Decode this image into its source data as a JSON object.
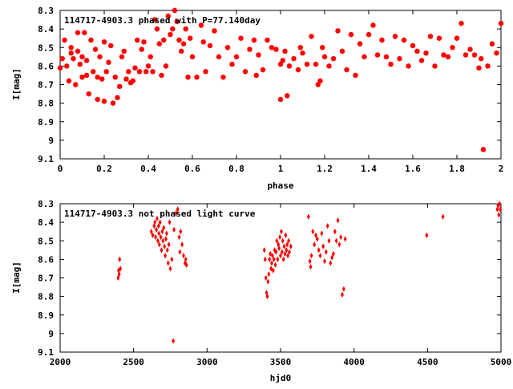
{
  "colors": {
    "points": "#ff0000",
    "axes": "#000000",
    "background": "#ffffff"
  },
  "chart_data": [
    {
      "type": "scatter",
      "title": "114717-4903.3 phased with P=77.140day",
      "xlabel": "phase",
      "ylabel": "I[mag]",
      "xlim": [
        0,
        2
      ],
      "ylim": [
        8.3,
        9.1
      ],
      "y_inverted": true,
      "xticks": [
        "0",
        "0.2",
        "0.4",
        "0.6",
        "0.8",
        "1",
        "1.2",
        "1.4",
        "1.6",
        "1.8",
        "2"
      ],
      "yticks": [
        "8.3",
        "8.4",
        "8.5",
        "8.6",
        "8.7",
        "8.8",
        "8.9",
        "9",
        "9.1"
      ],
      "marker": "star",
      "series": [
        {
          "x": [
            0.0,
            0.01,
            0.02,
            0.03,
            0.04,
            0.05,
            0.05,
            0.06,
            0.07,
            0.08,
            0.08,
            0.09,
            0.1,
            0.1,
            0.11,
            0.12,
            0.12,
            0.13,
            0.14,
            0.15,
            0.16,
            0.17,
            0.17,
            0.18,
            0.19,
            0.2,
            0.2,
            0.21,
            0.22,
            0.23,
            0.24,
            0.25,
            0.26,
            0.27,
            0.28,
            0.29,
            0.3,
            0.31,
            0.32,
            0.33,
            0.34,
            0.35,
            0.36,
            0.37,
            0.38,
            0.39,
            0.4,
            0.41,
            0.42,
            0.43,
            0.44,
            0.45,
            0.46,
            0.47,
            0.48,
            0.49,
            0.5,
            0.51,
            0.52,
            0.53,
            0.54,
            0.55,
            0.56,
            0.57,
            0.58,
            0.59,
            0.6,
            0.62,
            0.64,
            0.65,
            0.66,
            0.68,
            0.7,
            0.72,
            0.74,
            0.76,
            0.78,
            0.8,
            0.82,
            0.84,
            0.86,
            0.88,
            0.89,
            0.9,
            0.92,
            0.94,
            0.96,
            0.98,
            1.0,
            1.0,
            1.01,
            1.02,
            1.03,
            1.04,
            1.06,
            1.08,
            1.09,
            1.1,
            1.12,
            1.14,
            1.16,
            1.17,
            1.18,
            1.19,
            1.2,
            1.22,
            1.24,
            1.26,
            1.28,
            1.3,
            1.32,
            1.34,
            1.36,
            1.38,
            1.4,
            1.42,
            1.44,
            1.46,
            1.48,
            1.5,
            1.52,
            1.54,
            1.56,
            1.58,
            1.6,
            1.62,
            1.64,
            1.66,
            1.68,
            1.7,
            1.72,
            1.74,
            1.76,
            1.78,
            1.8,
            1.82,
            1.84,
            1.86,
            1.88,
            1.9,
            1.91,
            1.92,
            1.94,
            1.96,
            1.98,
            2.0
          ],
          "y": [
            8.61,
            8.56,
            8.46,
            8.6,
            8.68,
            8.5,
            8.53,
            8.56,
            8.7,
            8.42,
            8.52,
            8.59,
            8.55,
            8.66,
            8.42,
            8.57,
            8.65,
            8.75,
            8.46,
            8.63,
            8.51,
            8.66,
            8.78,
            8.55,
            8.67,
            8.47,
            8.79,
            8.63,
            8.58,
            8.49,
            8.8,
            8.66,
            8.77,
            8.71,
            8.55,
            8.52,
            8.67,
            8.63,
            8.69,
            8.68,
            8.61,
            8.46,
            8.63,
            8.51,
            8.47,
            8.63,
            8.6,
            8.55,
            8.63,
            8.35,
            8.4,
            8.48,
            8.65,
            8.46,
            8.6,
            8.33,
            8.43,
            8.4,
            8.3,
            8.36,
            8.46,
            8.52,
            8.48,
            8.4,
            8.66,
            8.45,
            8.55,
            8.66,
            8.38,
            8.47,
            8.63,
            8.49,
            8.41,
            8.55,
            8.66,
            8.5,
            8.59,
            8.55,
            8.45,
            8.63,
            8.51,
            8.46,
            8.65,
            8.54,
            8.62,
            8.46,
            8.5,
            8.51,
            8.59,
            8.78,
            8.57,
            8.52,
            8.76,
            8.6,
            8.56,
            8.62,
            8.5,
            8.53,
            8.59,
            8.44,
            8.59,
            8.7,
            8.68,
            8.5,
            8.55,
            8.6,
            8.56,
            8.41,
            8.52,
            8.62,
            8.43,
            8.65,
            8.48,
            8.55,
            8.43,
            8.38,
            8.54,
            8.46,
            8.55,
            8.59,
            8.44,
            8.56,
            8.46,
            8.6,
            8.49,
            8.52,
            8.57,
            8.53,
            8.44,
            8.6,
            8.45,
            8.54,
            8.55,
            8.5,
            8.45,
            8.37,
            8.54,
            8.51,
            8.54,
            8.61,
            8.56,
            9.05,
            8.6,
            8.48,
            8.53,
            8.37
          ]
        }
      ]
    },
    {
      "type": "scatter",
      "title": "114717-4903.3 not phased light curve",
      "xlabel": "hjd0",
      "ylabel": "I[mag]",
      "xlim": [
        2000,
        5000
      ],
      "ylim": [
        8.3,
        9.1
      ],
      "y_inverted": true,
      "xticks": [
        "2000",
        "2500",
        "3000",
        "3500",
        "4000",
        "4500",
        "5000"
      ],
      "yticks": [
        "8.3",
        "8.4",
        "8.5",
        "8.6",
        "8.7",
        "8.8",
        "8.9",
        "9",
        "9.1"
      ],
      "marker": "diamond",
      "series": [
        {
          "x": [
            2395,
            2398,
            2402,
            2405,
            2410,
            2620,
            2630,
            2640,
            2645,
            2650,
            2655,
            2660,
            2665,
            2670,
            2672,
            2675,
            2680,
            2685,
            2690,
            2695,
            2700,
            2705,
            2710,
            2715,
            2720,
            2725,
            2730,
            2735,
            2740,
            2745,
            2750,
            2760,
            2770,
            2775,
            2790,
            2800,
            2810,
            2815,
            2820,
            2830,
            2840,
            2850,
            2855,
            2860,
            3390,
            3395,
            3400,
            3405,
            3410,
            3415,
            3420,
            3425,
            3430,
            3435,
            3440,
            3445,
            3450,
            3455,
            3460,
            3465,
            3470,
            3475,
            3480,
            3485,
            3490,
            3495,
            3500,
            3505,
            3510,
            3515,
            3520,
            3525,
            3530,
            3535,
            3540,
            3545,
            3550,
            3555,
            3560,
            3570,
            3690,
            3700,
            3705,
            3710,
            3720,
            3730,
            3740,
            3750,
            3760,
            3770,
            3780,
            3790,
            3800,
            3810,
            3820,
            3830,
            3840,
            3850,
            3860,
            3870,
            3880,
            3890,
            3900,
            3910,
            3920,
            3930,
            3940,
            4495,
            4605,
            4975,
            4980,
            4985,
            4990,
            4995
          ],
          "y": [
            8.7,
            8.66,
            8.68,
            8.6,
            8.65,
            8.45,
            8.47,
            8.42,
            8.4,
            8.48,
            8.44,
            8.38,
            8.5,
            8.42,
            8.46,
            8.52,
            8.4,
            8.48,
            8.55,
            8.45,
            8.5,
            8.43,
            8.53,
            8.58,
            8.49,
            8.46,
            8.55,
            8.62,
            8.52,
            8.4,
            8.65,
            8.6,
            9.04,
            8.44,
            8.35,
            8.33,
            8.48,
            8.56,
            8.45,
            8.52,
            8.58,
            8.62,
            8.6,
            8.63,
            8.55,
            8.6,
            8.7,
            8.78,
            8.8,
            8.72,
            8.68,
            8.6,
            8.57,
            8.65,
            8.62,
            8.58,
            8.66,
            8.6,
            8.55,
            8.63,
            8.56,
            8.5,
            8.6,
            8.52,
            8.54,
            8.48,
            8.58,
            8.45,
            8.56,
            8.5,
            8.6,
            8.53,
            8.57,
            8.47,
            8.55,
            8.52,
            8.58,
            8.5,
            8.56,
            8.53,
            8.37,
            8.61,
            8.64,
            8.58,
            8.45,
            8.52,
            8.47,
            8.49,
            8.55,
            8.58,
            8.46,
            8.53,
            8.61,
            8.56,
            8.42,
            8.5,
            8.62,
            8.59,
            8.57,
            8.45,
            8.5,
            8.39,
            8.52,
            8.48,
            8.79,
            8.76,
            8.49,
            8.47,
            8.37,
            8.33,
            8.31,
            8.36,
            8.3,
            8.33
          ]
        }
      ]
    }
  ]
}
